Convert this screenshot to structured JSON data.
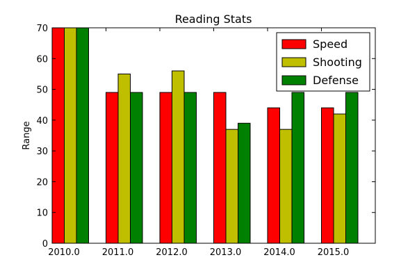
{
  "chart_data": {
    "type": "bar",
    "title": "Reading  Stats",
    "xlabel": "",
    "ylabel": "Range",
    "categories": [
      "2010.0",
      "2011.0",
      "2012.0",
      "2013.0",
      "2014.0",
      "2015.0"
    ],
    "ylim": [
      0,
      70
    ],
    "yticks": [
      0,
      10,
      20,
      30,
      40,
      50,
      60,
      70
    ],
    "grid": false,
    "legend_position": "top-right",
    "series": [
      {
        "name": "Speed",
        "color": "#ff0000",
        "values": [
          70,
          49,
          49,
          49,
          44,
          44
        ]
      },
      {
        "name": "Shooting",
        "color": "#bfbf00",
        "values": [
          70,
          55,
          56,
          37,
          37,
          42
        ]
      },
      {
        "name": "Defense",
        "color": "#008000",
        "values": [
          70,
          49,
          49,
          39,
          49,
          49
        ]
      }
    ]
  }
}
